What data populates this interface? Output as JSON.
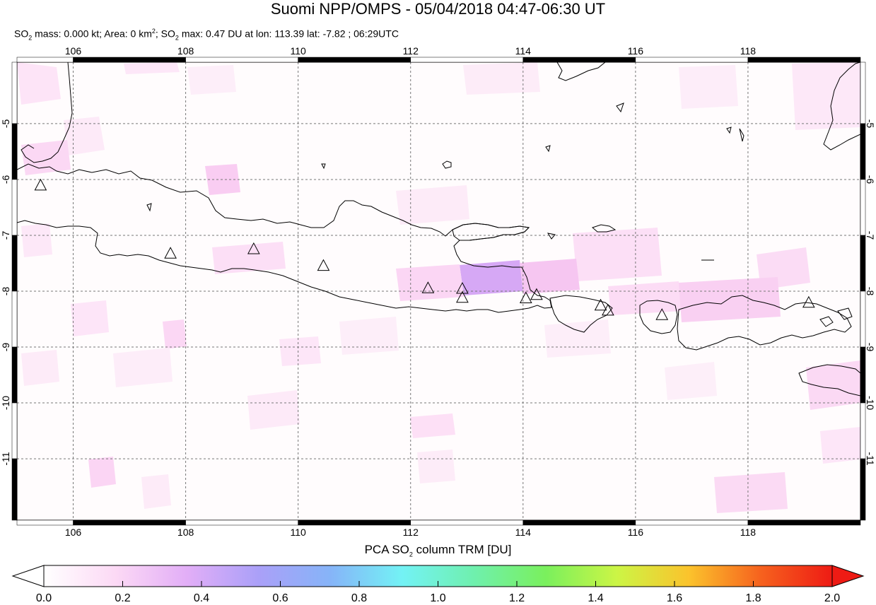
{
  "title": "Suomi NPP/OMPS - 05/04/2018 04:47-06:30 UT",
  "subtitle": {
    "mass_prefix": "SO",
    "mass_sub": "2",
    "mass_text": " mass: 0.000 kt; Area: 0 km",
    "area_sup": "2",
    "max_prefix": "; SO",
    "max_sub": "2",
    "max_text": " max: 0.47 DU at lon: 113.39 lat: -7.82 ; 06:29UTC"
  },
  "map": {
    "lon_range": [
      105,
      120
    ],
    "lat_range": [
      -12.1,
      -3.9
    ],
    "lon_ticks": [
      "106",
      "108",
      "110",
      "112",
      "114",
      "116",
      "118"
    ],
    "lat_ticks": [
      "-5",
      "-6",
      "-7",
      "-8",
      "-9",
      "-10",
      "-11"
    ],
    "gridlines": true,
    "volcanoes": [
      {
        "lon": 105.42,
        "lat": -6.1
      },
      {
        "lon": 107.73,
        "lat": -7.32
      },
      {
        "lon": 109.21,
        "lat": -7.24
      },
      {
        "lon": 110.45,
        "lat": -7.54
      },
      {
        "lon": 112.31,
        "lat": -7.94
      },
      {
        "lon": 112.92,
        "lat": -7.95
      },
      {
        "lon": 112.92,
        "lat": -8.11
      },
      {
        "lon": 114.05,
        "lat": -8.12
      },
      {
        "lon": 114.24,
        "lat": -8.06
      },
      {
        "lon": 115.38,
        "lat": -8.25
      },
      {
        "lon": 115.51,
        "lat": -8.34
      },
      {
        "lon": 116.47,
        "lat": -8.42
      },
      {
        "lon": 119.08,
        "lat": -8.2
      }
    ]
  },
  "colorbar": {
    "title_prefix": "PCA SO",
    "title_sub": "2",
    "title_suffix": " column TRM [DU]",
    "min": 0.0,
    "max": 2.0,
    "tick_labels": [
      "0.0",
      "0.2",
      "0.4",
      "0.6",
      "0.8",
      "1.0",
      "1.2",
      "1.4",
      "1.6",
      "1.8",
      "2.0"
    ],
    "colors": [
      "#ffffff",
      "#fcd9f5",
      "#e2aef7",
      "#aaa0f8",
      "#86b4f8",
      "#73f2f5",
      "#6ff0ae",
      "#7af05d",
      "#ccf545",
      "#fbc32c",
      "#f6621e",
      "#ee1b14"
    ]
  }
}
